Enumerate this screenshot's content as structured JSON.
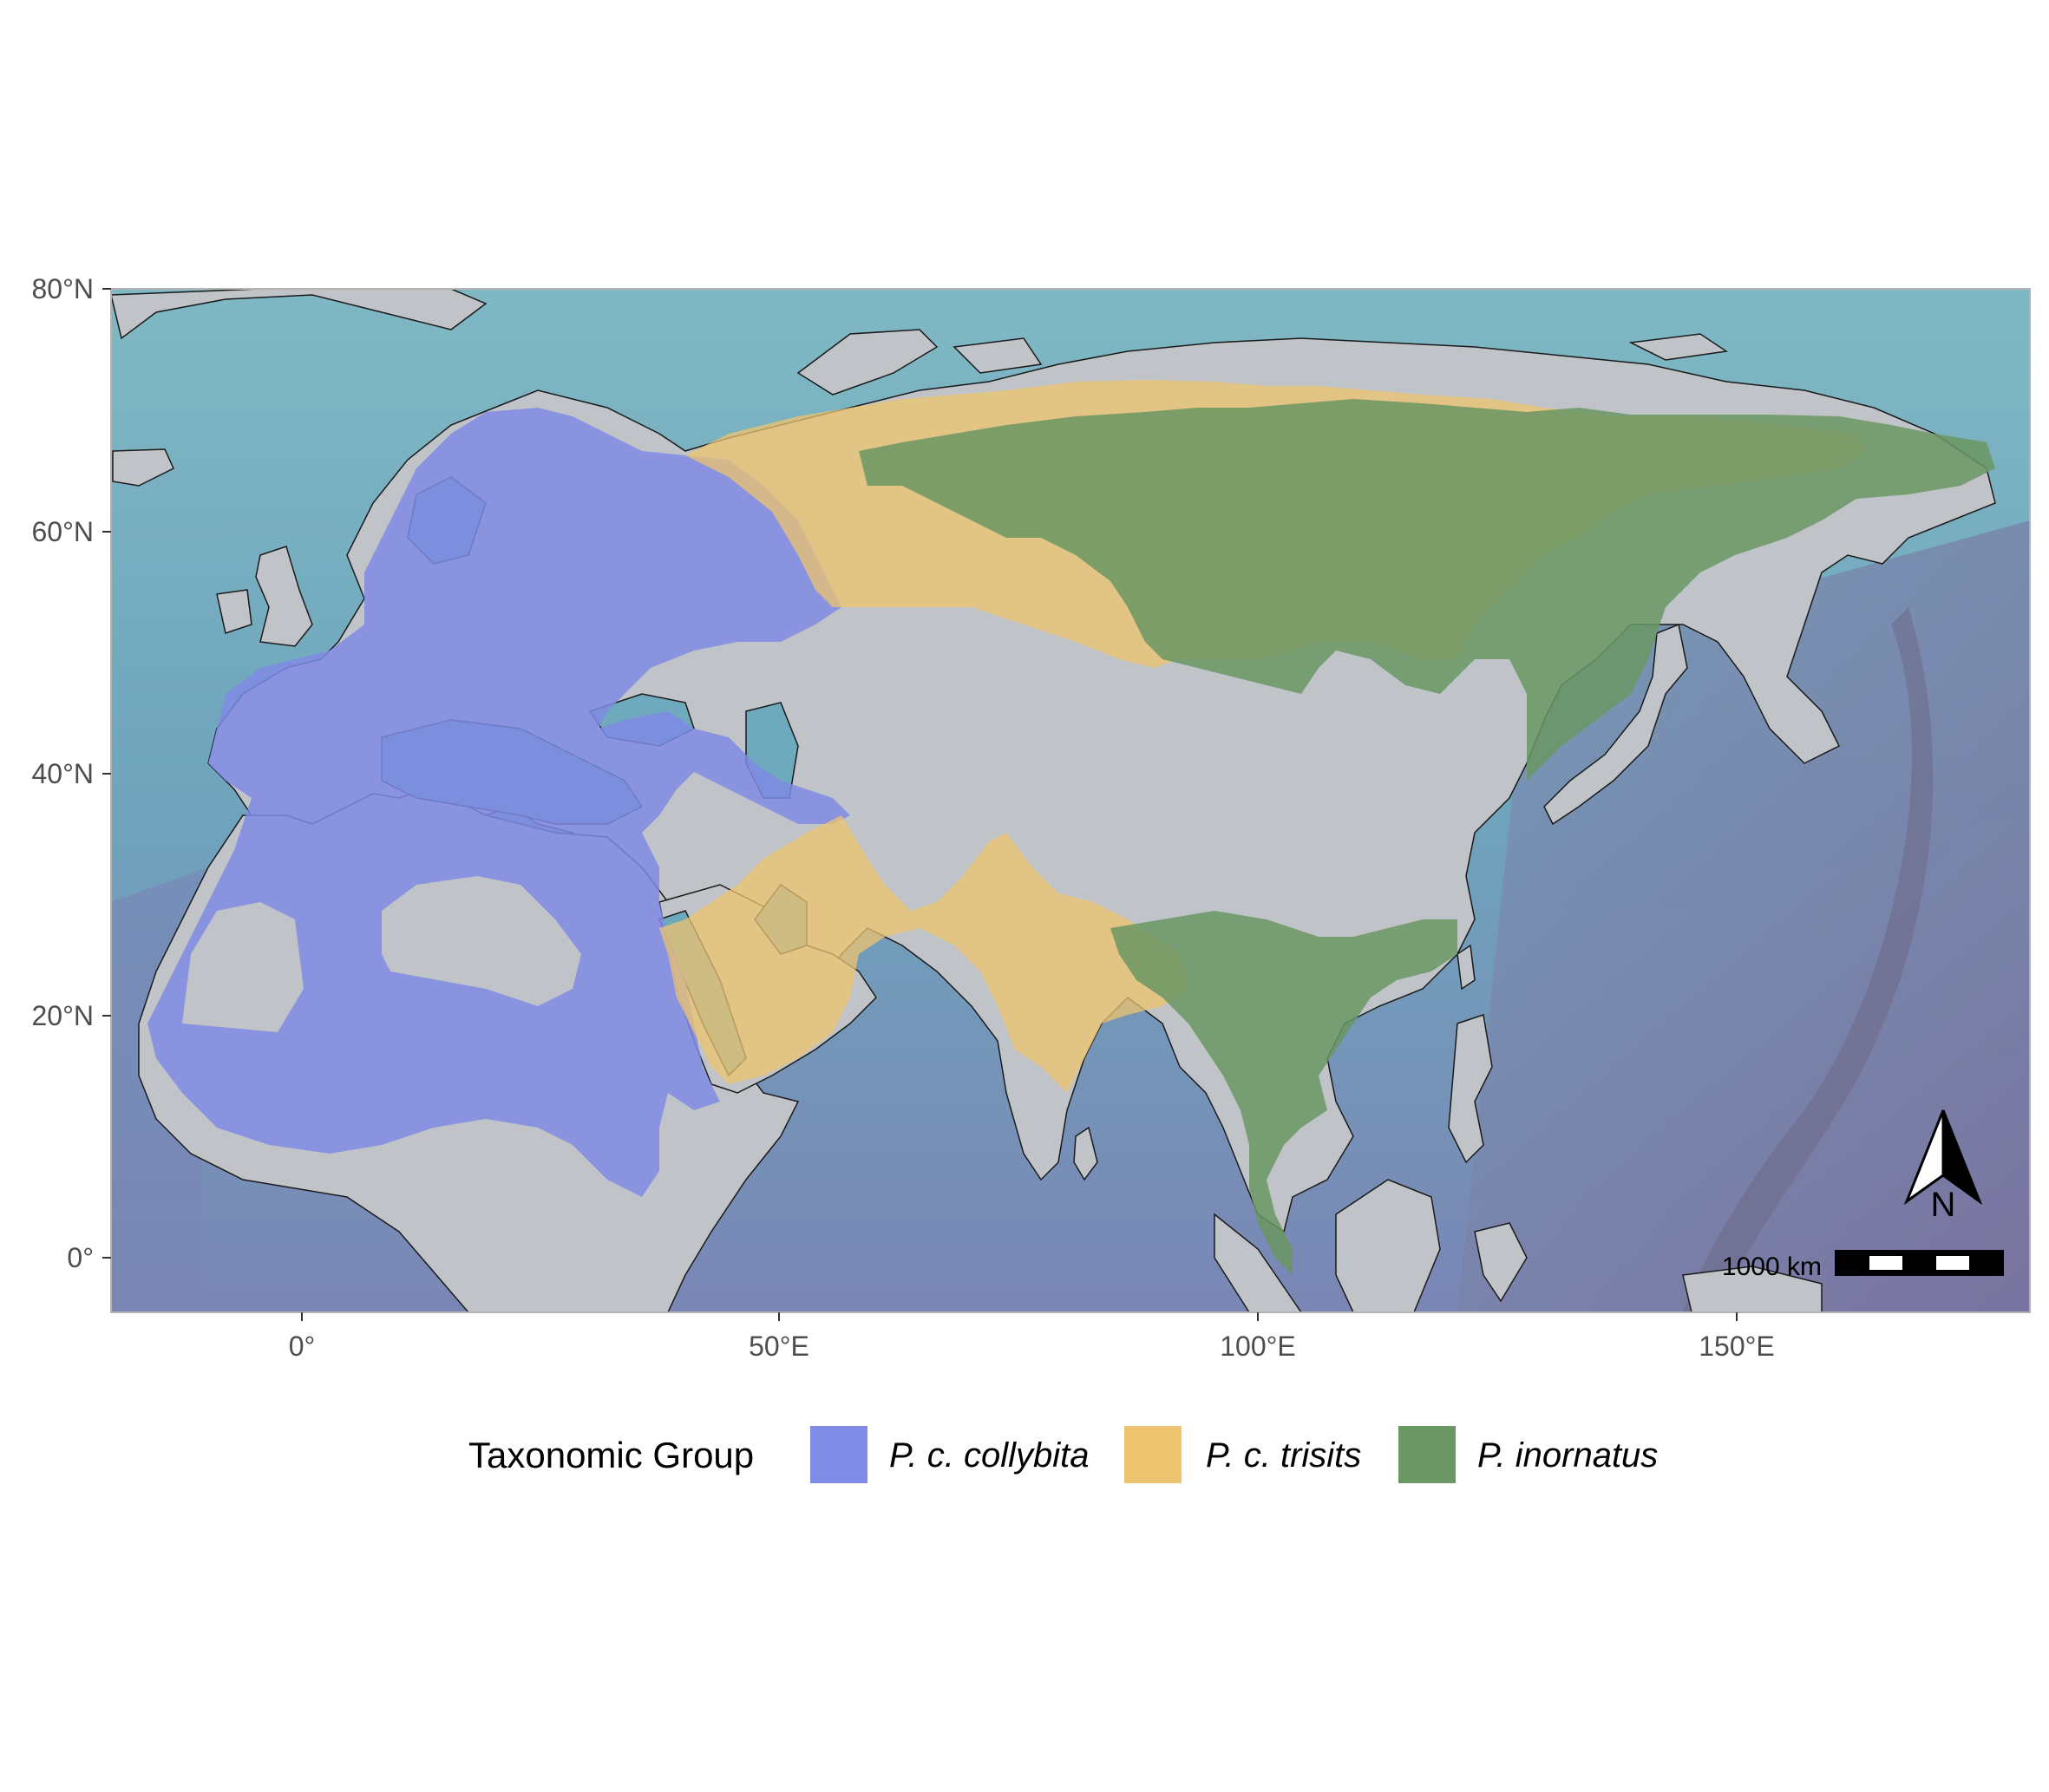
{
  "map": {
    "axes": {
      "y_ticks": [
        "80°N",
        "60°N",
        "40°N",
        "20°N",
        "0°"
      ],
      "x_ticks": [
        "0°",
        "50°E",
        "100°E",
        "150°E"
      ]
    },
    "colors": {
      "ocean": "#6fa9bd",
      "ocean_deep": "#7d8bb8",
      "land": "#c0c4c8",
      "collybita": "#7f8be4",
      "trisits": "#edc46f",
      "inornatus": "#6a9763"
    },
    "legend": {
      "title": "Taxonomic Group",
      "items": [
        {
          "label": "P. c. collybita",
          "color": "#7f8be4"
        },
        {
          "label": "P. c. trisits",
          "color": "#edc46f"
        },
        {
          "label": "P. inornatus",
          "color": "#6a9763"
        }
      ]
    },
    "scale_bar": {
      "label": "1000 km"
    },
    "north_arrow": {
      "label": "N"
    }
  }
}
